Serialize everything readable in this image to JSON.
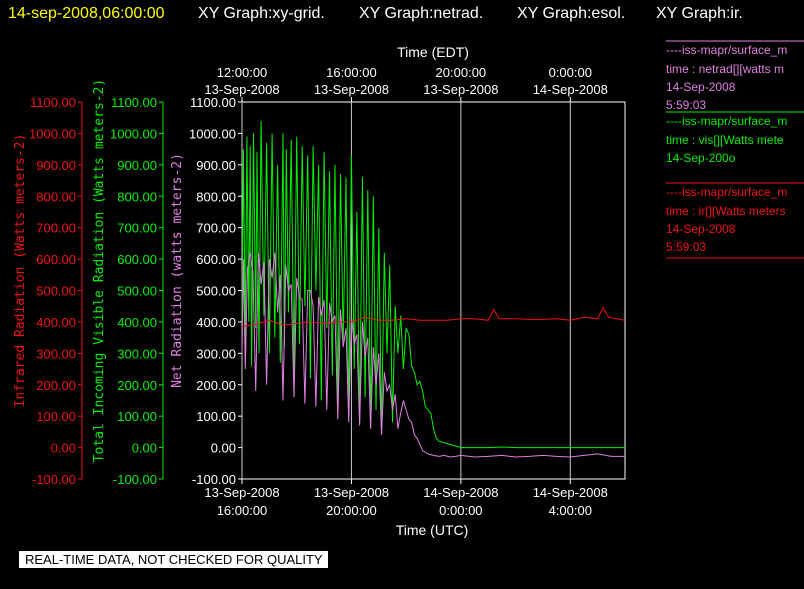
{
  "header": {
    "timestamp": "14-sep-2008,06:00:00",
    "graphs": [
      "XY Graph:xy-grid.",
      "XY Graph:netrad.",
      "XY Graph:esol.",
      "XY Graph:ir."
    ]
  },
  "legend": [
    {
      "line1": "----iss-mapr/surface_m",
      "line2": "time : netrad[][watts m",
      "line3": "14-Sep-2008",
      "line4": "5:59:03",
      "color": "#e080e0"
    },
    {
      "line1": "----iss-mapr/surface_m",
      "line2": "time : vis[][Watts mete",
      "line3": "14-Sep-200o",
      "line4": "",
      "color": "#00ee00"
    },
    {
      "line1": "----iss-mapr/surface_m",
      "line2": "time : ir[][Watts meters",
      "line3": "14-Sep-2008",
      "line4": "5:59:03",
      "color": "#ee1111"
    }
  ],
  "footer_note": "REAL-TIME DATA, NOT CHECKED FOR QUALITY",
  "colors": {
    "ir": "#ee1111",
    "vis": "#00ee00",
    "net": "#e080e0",
    "axis": "#ffffff",
    "background": "#000000"
  },
  "chart_data": {
    "type": "line",
    "x_top_label": "Time (EDT)",
    "x_bottom_label": "Time (UTC)",
    "x_range_hours_utc": [
      16.0,
      30.0
    ],
    "top_ticks": [
      {
        "hour": 16,
        "line1": "12:00:00",
        "line2": "13-Sep-2008"
      },
      {
        "hour": 20,
        "line1": "16:00:00",
        "line2": "13-Sep-2008"
      },
      {
        "hour": 24,
        "line1": "20:00:00",
        "line2": "13-Sep-2008"
      },
      {
        "hour": 28,
        "line1": "0:00:00",
        "line2": "14-Sep-2008"
      }
    ],
    "bottom_ticks": [
      {
        "hour": 16,
        "line1": "13-Sep-2008",
        "line2": "16:00:00"
      },
      {
        "hour": 20,
        "line1": "13-Sep-2008",
        "line2": "20:00:00"
      },
      {
        "hour": 24,
        "line1": "14-Sep-2008",
        "line2": "0:00:00"
      },
      {
        "hour": 28,
        "line1": "14-Sep-2008",
        "line2": "4:00:00"
      }
    ],
    "y_axes": [
      {
        "name": "ir",
        "label": "Infrared Radiation (Watts meters-2)",
        "color": "#ee1111",
        "range": [
          -100,
          1100
        ],
        "ticks": [
          "-100.00",
          "0.00",
          "100.00",
          "200.00",
          "300.00",
          "400.00",
          "500.00",
          "600.00",
          "700.00",
          "800.00",
          "900.00",
          "1000.00",
          "1100.00"
        ]
      },
      {
        "name": "vis",
        "label": "Total Incoming Visible Radiation (Watts meters-2)",
        "color": "#00ee00",
        "range": [
          -100,
          1100
        ],
        "ticks": [
          "-100.00",
          "0.00",
          "100.00",
          "200.00",
          "300.00",
          "400.00",
          "500.00",
          "600.00",
          "700.00",
          "800.00",
          "900.00",
          "1000.00",
          "1100.00"
        ]
      },
      {
        "name": "net",
        "label": "Net Radiation (watts meters-2)",
        "color": "#e080e0",
        "range": [
          -100,
          1100
        ],
        "ticks": [
          "-100.00",
          "0.00",
          "100.00",
          "200.00",
          "300.00",
          "400.00",
          "500.00",
          "600.00",
          "700.00",
          "800.00",
          "900.00",
          "1000.00",
          "1100.00"
        ]
      }
    ],
    "grid": true,
    "series": [
      {
        "key": "vis",
        "color": "#00ee00",
        "x": [
          16.0,
          16.05,
          16.12,
          16.18,
          16.25,
          16.3,
          16.35,
          16.42,
          16.5,
          16.55,
          16.62,
          16.7,
          16.8,
          16.9,
          17.0,
          17.1,
          17.2,
          17.3,
          17.4,
          17.5,
          17.55,
          17.62,
          17.7,
          17.8,
          17.9,
          18.0,
          18.1,
          18.2,
          18.3,
          18.4,
          18.5,
          18.6,
          18.7,
          18.8,
          18.9,
          19.0,
          19.1,
          19.2,
          19.3,
          19.4,
          19.5,
          19.6,
          19.7,
          19.8,
          19.9,
          20.0,
          20.1,
          20.2,
          20.3,
          20.4,
          20.5,
          20.6,
          20.7,
          20.8,
          20.9,
          21.0,
          21.1,
          21.2,
          21.3,
          21.4,
          21.5,
          21.6,
          21.7,
          21.8,
          21.9,
          22.0,
          22.1,
          22.2,
          22.3,
          22.4,
          22.5,
          22.6,
          22.7,
          22.8,
          22.9,
          23.0,
          23.1,
          23.2,
          23.4,
          23.6,
          23.8,
          24.0,
          24.5,
          25.0,
          25.5,
          26.0,
          26.5,
          27.0,
          27.5,
          28.0,
          28.5,
          29.0,
          29.5,
          30.0
        ],
        "y": [
          400,
          950,
          330,
          990,
          400,
          960,
          260,
          1000,
          380,
          940,
          300,
          1040,
          420,
          970,
          300,
          1000,
          350,
          900,
          270,
          1000,
          320,
          950,
          430,
          980,
          240,
          990,
          330,
          960,
          450,
          930,
          220,
          960,
          500,
          900,
          150,
          940,
          380,
          880,
          230,
          900,
          140,
          870,
          340,
          860,
          100,
          930,
          250,
          750,
          80,
          860,
          160,
          820,
          60,
          800,
          120,
          700,
          50,
          620,
          300,
          580,
          80,
          450,
          300,
          420,
          250,
          380,
          360,
          260,
          240,
          200,
          210,
          180,
          130,
          120,
          110,
          60,
          30,
          20,
          15,
          10,
          5,
          0,
          0,
          0,
          2,
          0,
          0,
          0,
          0,
          0,
          0,
          0,
          0,
          0
        ]
      },
      {
        "key": "net",
        "color": "#e080e0",
        "x": [
          16.0,
          16.05,
          16.12,
          16.2,
          16.3,
          16.4,
          16.5,
          16.6,
          16.7,
          16.8,
          16.9,
          17.0,
          17.1,
          17.2,
          17.3,
          17.4,
          17.5,
          17.6,
          17.7,
          17.8,
          17.9,
          18.0,
          18.1,
          18.2,
          18.3,
          18.4,
          18.5,
          18.6,
          18.7,
          18.8,
          18.9,
          19.0,
          19.1,
          19.2,
          19.3,
          19.4,
          19.5,
          19.6,
          19.7,
          19.8,
          19.9,
          20.0,
          20.1,
          20.2,
          20.3,
          20.4,
          20.5,
          20.6,
          20.7,
          20.8,
          20.9,
          21.0,
          21.1,
          21.2,
          21.3,
          21.4,
          21.5,
          21.6,
          21.7,
          21.8,
          21.9,
          22.0,
          22.1,
          22.2,
          22.3,
          22.4,
          22.6,
          22.8,
          23.0,
          23.2,
          23.4,
          23.6,
          23.8,
          24.0,
          24.5,
          25.0,
          25.5,
          26.0,
          26.5,
          27.0,
          27.5,
          28.0,
          28.5,
          29.0,
          29.5,
          30.0
        ],
        "y": [
          300,
          600,
          250,
          570,
          620,
          560,
          180,
          620,
          520,
          590,
          200,
          600,
          540,
          620,
          430,
          550,
          150,
          580,
          500,
          520,
          160,
          540,
          480,
          470,
          140,
          500,
          500,
          450,
          130,
          480,
          420,
          470,
          120,
          460,
          400,
          420,
          90,
          440,
          320,
          380,
          80,
          420,
          330,
          360,
          70,
          400,
          290,
          350,
          60,
          320,
          200,
          300,
          40,
          240,
          180,
          200,
          120,
          170,
          60,
          110,
          150,
          120,
          90,
          80,
          40,
          30,
          -10,
          -20,
          -25,
          -28,
          -25,
          -30,
          -28,
          -25,
          -30,
          -28,
          -25,
          -30,
          -28,
          -25,
          -28,
          -30,
          -25,
          -20,
          -28,
          -28
        ]
      },
      {
        "key": "ir",
        "color": "#ee1111",
        "x": [
          16.0,
          16.5,
          17.0,
          17.5,
          18.0,
          18.5,
          19.0,
          19.5,
          20.0,
          20.5,
          21.0,
          21.5,
          22.0,
          22.5,
          23.0,
          23.5,
          24.0,
          24.5,
          25.0,
          25.2,
          25.4,
          26.0,
          26.5,
          27.0,
          27.5,
          28.0,
          28.5,
          29.0,
          29.2,
          29.4,
          30.0
        ],
        "y": [
          385,
          392,
          405,
          390,
          395,
          400,
          395,
          400,
          400,
          415,
          405,
          405,
          410,
          405,
          405,
          405,
          410,
          410,
          405,
          440,
          410,
          410,
          408,
          408,
          410,
          405,
          415,
          410,
          445,
          415,
          405
        ]
      }
    ]
  }
}
